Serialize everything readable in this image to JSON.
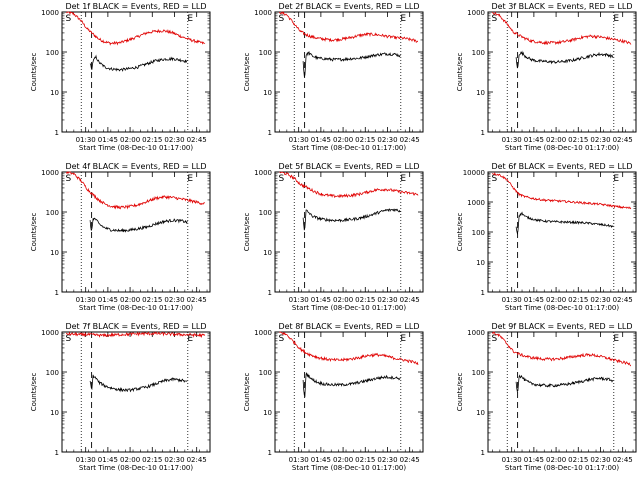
{
  "chart_data": {
    "type": "line",
    "panel_common": {
      "ylabel": "Counts/sec",
      "xlabel": "Start Time (08-Dec-10 01:17:00)",
      "x_tick_labels": [
        "01:30",
        "01:45",
        "02:00",
        "02:15",
        "02:30",
        "02:45"
      ],
      "x_tick_values_min": [
        13,
        28,
        43,
        58,
        73,
        88
      ],
      "x_range_min": [
        -3,
        97
      ],
      "y_scale": "log",
      "y_tick_labels": [
        "1",
        "10",
        "100",
        "1000"
      ],
      "marker_S": "S",
      "marker_E": "E",
      "series_colors": {
        "events": "#000000",
        "lld": "#e00000"
      }
    },
    "panels": [
      {
        "title": "Det 1f BLACK = Events, RED = LLD",
        "ylim": [
          1,
          1000
        ],
        "y_tick_labels": [
          "1",
          "10",
          "100",
          "1000"
        ],
        "dotted_lines_min": [
          10,
          82
        ],
        "dashed_line_min": 17,
        "S_min": -2,
        "E_min": 81,
        "series": [
          {
            "name": "LLD",
            "x": [
              0,
              5,
              10,
              14,
              18,
              22,
              26,
              30,
              36,
              42,
              48,
              54,
              60,
              66,
              72,
              78,
              84,
              90,
              94
            ],
            "values": [
              1000,
              900,
              600,
              380,
              280,
              210,
              180,
              165,
              170,
              200,
              240,
              300,
              330,
              340,
              300,
              240,
              200,
              175,
              160
            ]
          },
          {
            "name": "Events",
            "x": [
              16,
              17,
              18,
              20,
              22,
              26,
              30,
              36,
              42,
              48,
              54,
              60,
              66,
              72,
              78,
              82
            ],
            "values": [
              55,
              35,
              60,
              75,
              55,
              42,
              38,
              36,
              38,
              42,
              50,
              60,
              66,
              68,
              62,
              58
            ]
          }
        ]
      },
      {
        "title": "Det 2f BLACK = Events, RED = LLD",
        "ylim": [
          1,
          1000
        ],
        "y_tick_labels": [
          "1",
          "10",
          "100",
          "1000"
        ],
        "dotted_lines_min": [
          10,
          82
        ],
        "dashed_line_min": 17,
        "S_min": -2,
        "E_min": 81,
        "series": [
          {
            "name": "LLD",
            "x": [
              0,
              5,
              10,
              14,
              18,
              22,
              26,
              30,
              36,
              42,
              48,
              54,
              60,
              66,
              72,
              78,
              84,
              90,
              94
            ],
            "values": [
              1000,
              850,
              500,
              330,
              270,
              240,
              220,
              210,
              200,
              210,
              230,
              260,
              280,
              270,
              250,
              230,
              220,
              200,
              180
            ]
          },
          {
            "name": "Events",
            "x": [
              16,
              17,
              18,
              20,
              22,
              26,
              30,
              36,
              42,
              48,
              54,
              60,
              66,
              72,
              78,
              82
            ],
            "values": [
              60,
              20,
              85,
              95,
              80,
              70,
              68,
              65,
              65,
              68,
              70,
              78,
              85,
              90,
              88,
              80
            ]
          }
        ]
      },
      {
        "title": "Det 3f BLACK = Events, RED = LLD",
        "ylim": [
          1,
          1000
        ],
        "y_tick_labels": [
          "1",
          "10",
          "100",
          "1000"
        ],
        "dotted_lines_min": [
          10,
          82
        ],
        "dashed_line_min": 17,
        "S_min": -2,
        "E_min": 81,
        "series": [
          {
            "name": "LLD",
            "x": [
              0,
              5,
              10,
              14,
              18,
              22,
              26,
              30,
              36,
              42,
              48,
              54,
              60,
              66,
              72,
              78,
              84,
              90,
              94
            ],
            "values": [
              1000,
              800,
              500,
              320,
              260,
              220,
              190,
              180,
              170,
              170,
              180,
              200,
              230,
              250,
              240,
              220,
              200,
              180,
              160
            ]
          },
          {
            "name": "Events",
            "x": [
              16,
              17,
              18,
              20,
              22,
              26,
              30,
              36,
              42,
              48,
              54,
              60,
              66,
              72,
              78,
              82
            ],
            "values": [
              70,
              35,
              90,
              95,
              80,
              65,
              60,
              58,
              56,
              58,
              62,
              70,
              80,
              88,
              85,
              75
            ]
          }
        ]
      },
      {
        "title": "Det 4f BLACK = Events, RED = LLD",
        "ylim": [
          1,
          1000
        ],
        "y_tick_labels": [
          "1",
          "10",
          "100",
          "1000"
        ],
        "dotted_lines_min": [
          10,
          82
        ],
        "dashed_line_min": 17,
        "S_min": -2,
        "E_min": 81,
        "series": [
          {
            "name": "LLD",
            "x": [
              0,
              5,
              10,
              14,
              18,
              22,
              26,
              30,
              36,
              42,
              48,
              54,
              60,
              66,
              72,
              78,
              84,
              90,
              94
            ],
            "values": [
              1000,
              900,
              600,
              380,
              270,
              200,
              160,
              140,
              130,
              135,
              150,
              180,
              220,
              240,
              230,
              210,
              190,
              170,
              160
            ]
          },
          {
            "name": "Events",
            "x": [
              16,
              17,
              18,
              20,
              22,
              26,
              30,
              36,
              42,
              48,
              54,
              60,
              66,
              72,
              78,
              82
            ],
            "values": [
              60,
              30,
              70,
              65,
              50,
              40,
              36,
              34,
              35,
              38,
              42,
              50,
              58,
              62,
              60,
              55
            ]
          }
        ]
      },
      {
        "title": "Det 5f BLACK = Events, RED = LLD",
        "ylim": [
          1,
          1000
        ],
        "y_tick_labels": [
          "1",
          "10",
          "100",
          "1000"
        ],
        "dotted_lines_min": [
          10,
          82
        ],
        "dashed_line_min": 17,
        "S_min": -2,
        "E_min": 81,
        "series": [
          {
            "name": "LLD",
            "x": [
              0,
              5,
              10,
              14,
              18,
              22,
              26,
              30,
              36,
              42,
              48,
              54,
              60,
              66,
              72,
              78,
              84,
              90,
              94
            ],
            "values": [
              1000,
              900,
              700,
              500,
              420,
              350,
              300,
              270,
              250,
              250,
              260,
              280,
              320,
              360,
              370,
              340,
              310,
              290,
              270
            ]
          },
          {
            "name": "Events",
            "x": [
              16,
              17,
              18,
              20,
              22,
              26,
              30,
              36,
              42,
              48,
              54,
              60,
              66,
              72,
              78,
              82
            ],
            "values": [
              75,
              30,
              110,
              95,
              80,
              70,
              65,
              62,
              62,
              65,
              70,
              80,
              95,
              110,
              115,
              105
            ]
          }
        ]
      },
      {
        "title": "Det 6f BLACK = Events, RED = LLD",
        "ylim": [
          1,
          10000
        ],
        "y_tick_labels": [
          "1",
          "10",
          "100",
          "1000",
          "10000"
        ],
        "dotted_lines_min": [
          10,
          82
        ],
        "dashed_line_min": 17,
        "S_min": -2,
        "E_min": 81,
        "series": [
          {
            "name": "LLD",
            "x": [
              0,
              5,
              10,
              14,
              18,
              22,
              26,
              30,
              36,
              42,
              48,
              54,
              60,
              66,
              72,
              78,
              84,
              90,
              94
            ],
            "values": [
              9000,
              8000,
              5500,
              3000,
              1800,
              1500,
              1350,
              1250,
              1150,
              1100,
              1050,
              1000,
              950,
              900,
              850,
              780,
              700,
              650,
              620
            ]
          },
          {
            "name": "Events",
            "x": [
              16,
              17,
              18,
              20,
              22,
              26,
              30,
              36,
              42,
              48,
              54,
              60,
              66,
              72,
              78,
              82
            ],
            "values": [
              150,
              80,
              350,
              420,
              330,
              280,
              250,
              230,
              220,
              215,
              210,
              205,
              195,
              180,
              165,
              150
            ]
          }
        ]
      },
      {
        "title": "Det 7f BLACK = Events, RED = LLD",
        "ylim": [
          1,
          1000
        ],
        "y_tick_labels": [
          "1",
          "10",
          "100",
          "1000"
        ],
        "dotted_lines_min": [
          10,
          82
        ],
        "dashed_line_min": 17,
        "S_min": -2,
        "E_min": 81,
        "series": [
          {
            "name": "LLD",
            "x": [
              0,
              5,
              10,
              14,
              18,
              22,
              26,
              30,
              36,
              42,
              48,
              54,
              60,
              66,
              72,
              78,
              84,
              90,
              94
            ],
            "values": [
              900,
              880,
              860,
              870,
              850,
              830,
              820,
              840,
              860,
              880,
              900,
              910,
              920,
              900,
              880,
              860,
              850,
              830,
              820
            ]
          },
          {
            "name": "Events",
            "x": [
              16,
              17,
              18,
              20,
              22,
              26,
              30,
              36,
              42,
              48,
              54,
              60,
              66,
              72,
              78,
              82
            ],
            "values": [
              60,
              35,
              80,
              70,
              55,
              45,
              40,
              36,
              35,
              38,
              42,
              50,
              60,
              66,
              62,
              56
            ]
          }
        ]
      },
      {
        "title": "Det 8f BLACK = Events, RED = LLD",
        "ylim": [
          1,
          1000
        ],
        "y_tick_labels": [
          "1",
          "10",
          "100",
          "1000"
        ],
        "dotted_lines_min": [
          10,
          82
        ],
        "dashed_line_min": 17,
        "S_min": -2,
        "E_min": 81,
        "series": [
          {
            "name": "LLD",
            "x": [
              0,
              5,
              10,
              14,
              18,
              22,
              26,
              30,
              36,
              42,
              48,
              54,
              60,
              66,
              72,
              78,
              84,
              90,
              94
            ],
            "values": [
              1000,
              850,
              550,
              380,
              300,
              260,
              230,
              215,
              200,
              200,
              210,
              230,
              260,
              270,
              250,
              220,
              200,
              180,
              160
            ]
          },
          {
            "name": "Events",
            "x": [
              16,
              17,
              18,
              20,
              22,
              26,
              30,
              36,
              42,
              48,
              54,
              60,
              66,
              72,
              78,
              82
            ],
            "values": [
              60,
              20,
              90,
              80,
              65,
              55,
              50,
              48,
              48,
              50,
              55,
              62,
              70,
              75,
              72,
              68
            ]
          }
        ]
      },
      {
        "title": "Det 9f BLACK = Events, RED = LLD",
        "ylim": [
          1,
          1000
        ],
        "y_tick_labels": [
          "1",
          "10",
          "100",
          "1000"
        ],
        "dotted_lines_min": [
          10,
          82
        ],
        "dashed_line_min": 17,
        "S_min": -2,
        "E_min": 81,
        "series": [
          {
            "name": "LLD",
            "x": [
              0,
              5,
              10,
              14,
              18,
              22,
              26,
              30,
              36,
              42,
              48,
              54,
              60,
              66,
              72,
              78,
              84,
              90,
              94
            ],
            "values": [
              1000,
              800,
              500,
              330,
              280,
              250,
              230,
              220,
              210,
              210,
              220,
              240,
              260,
              270,
              250,
              220,
              190,
              170,
              150
            ]
          },
          {
            "name": "Events",
            "x": [
              16,
              17,
              18,
              20,
              22,
              26,
              30,
              36,
              42,
              48,
              54,
              60,
              66,
              72,
              78,
              82
            ],
            "values": [
              55,
              30,
              80,
              75,
              62,
              52,
              48,
              46,
              46,
              48,
              52,
              58,
              65,
              70,
              66,
              60
            ]
          }
        ]
      }
    ]
  }
}
